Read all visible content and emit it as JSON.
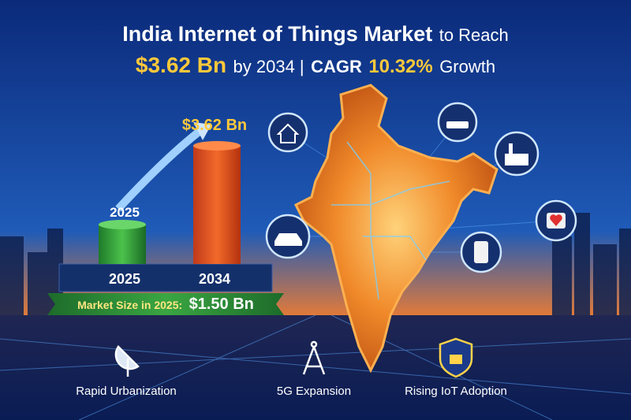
{
  "header": {
    "title_main": "India Internet of Things Market",
    "title_tail": "to Reach",
    "value": "$3.62 Bn",
    "by_year": "by 2034 |",
    "cagr_label": "CAGR",
    "cagr_value": "10.32%",
    "growth": "Growth"
  },
  "bars": {
    "top_label": "$3.62 Bn",
    "small_label": "2025",
    "years": [
      "2025",
      "2034"
    ]
  },
  "banner": {
    "label": "Market Size in 2025:",
    "value": "$1.50 Bn"
  },
  "features": [
    "Rapid Urbanization",
    "5G Expansion",
    "Rising IoT Adoption"
  ]
}
